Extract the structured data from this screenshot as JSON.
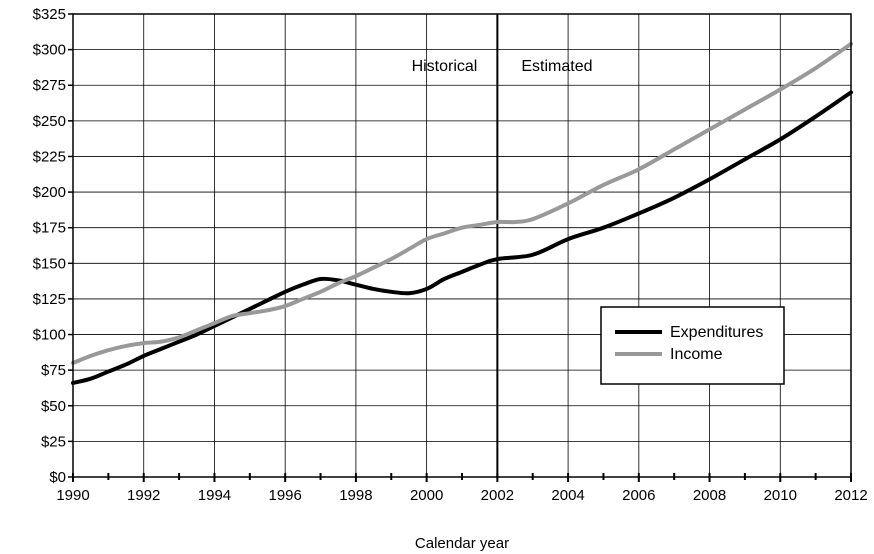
{
  "chart_data": {
    "type": "line",
    "title": "",
    "xlabel": "Calendar year",
    "ylabel": "",
    "xlim": [
      1990,
      2012
    ],
    "ylim": [
      0,
      325
    ],
    "x_ticks": [
      1990,
      1992,
      1994,
      1996,
      1998,
      2000,
      2002,
      2004,
      2006,
      2008,
      2010,
      2012
    ],
    "y_ticks": [
      0,
      25,
      50,
      75,
      100,
      125,
      150,
      175,
      200,
      225,
      250,
      275,
      300,
      325
    ],
    "y_tick_prefix": "$",
    "grid": true,
    "divider": {
      "x": 2002,
      "left_label": "Historical",
      "right_label": "Estimated"
    },
    "legend_position": "center-right",
    "series": [
      {
        "name": "Expenditures",
        "color": "#000000",
        "points": [
          [
            1990,
            66
          ],
          [
            1990.5,
            69
          ],
          [
            1991,
            74
          ],
          [
            1991.5,
            79
          ],
          [
            1992,
            85
          ],
          [
            1992.5,
            90
          ],
          [
            1993,
            95
          ],
          [
            1993.5,
            100
          ],
          [
            1994,
            106
          ],
          [
            1994.5,
            112
          ],
          [
            1995,
            118
          ],
          [
            1995.5,
            124
          ],
          [
            1996,
            130
          ],
          [
            1996.5,
            135
          ],
          [
            1997,
            139
          ],
          [
            1997.5,
            138
          ],
          [
            1998,
            135
          ],
          [
            1998.5,
            132
          ],
          [
            1999,
            130
          ],
          [
            1999.5,
            129
          ],
          [
            2000,
            132
          ],
          [
            2000.5,
            139
          ],
          [
            2001,
            144
          ],
          [
            2001.5,
            149
          ],
          [
            2002,
            153
          ],
          [
            2003,
            156
          ],
          [
            2004,
            167
          ],
          [
            2005,
            175
          ],
          [
            2006,
            185
          ],
          [
            2007,
            196
          ],
          [
            2008,
            209
          ],
          [
            2009,
            223
          ],
          [
            2010,
            237
          ],
          [
            2011,
            253
          ],
          [
            2012,
            270
          ]
        ]
      },
      {
        "name": "Income",
        "color": "#999999",
        "points": [
          [
            1990,
            80
          ],
          [
            1990.5,
            85
          ],
          [
            1991,
            89
          ],
          [
            1991.5,
            92
          ],
          [
            1992,
            94
          ],
          [
            1992.5,
            95
          ],
          [
            1993,
            98
          ],
          [
            1993.5,
            103
          ],
          [
            1994,
            108
          ],
          [
            1994.5,
            113
          ],
          [
            1995,
            115
          ],
          [
            1995.5,
            117
          ],
          [
            1996,
            120
          ],
          [
            1996.5,
            125
          ],
          [
            1997,
            130
          ],
          [
            1997.5,
            136
          ],
          [
            1998,
            141
          ],
          [
            1998.5,
            147
          ],
          [
            1999,
            153
          ],
          [
            1999.5,
            160
          ],
          [
            2000,
            167
          ],
          [
            2000.5,
            171
          ],
          [
            2001,
            175
          ],
          [
            2001.5,
            177
          ],
          [
            2002,
            179
          ],
          [
            2002.5,
            179
          ],
          [
            2003,
            181
          ],
          [
            2004,
            192
          ],
          [
            2005,
            205
          ],
          [
            2006,
            216
          ],
          [
            2007,
            230
          ],
          [
            2008,
            244
          ],
          [
            2009,
            258
          ],
          [
            2010,
            272
          ],
          [
            2011,
            287
          ],
          [
            2012,
            304
          ]
        ]
      }
    ]
  }
}
